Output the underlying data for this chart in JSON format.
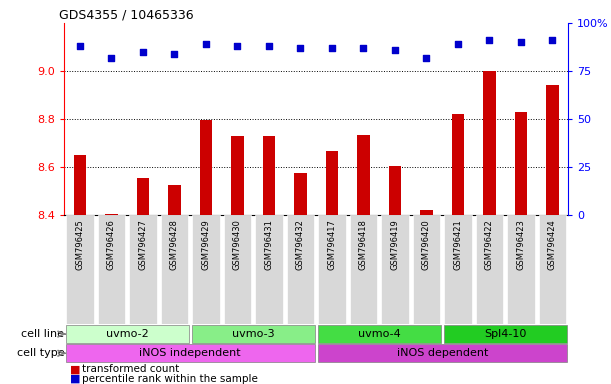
{
  "title": "GDS4355 / 10465336",
  "samples": [
    "GSM796425",
    "GSM796426",
    "GSM796427",
    "GSM796428",
    "GSM796429",
    "GSM796430",
    "GSM796431",
    "GSM796432",
    "GSM796417",
    "GSM796418",
    "GSM796419",
    "GSM796420",
    "GSM796421",
    "GSM796422",
    "GSM796423",
    "GSM796424"
  ],
  "bar_values": [
    8.65,
    8.405,
    8.555,
    8.525,
    8.795,
    8.73,
    8.73,
    8.575,
    8.665,
    8.735,
    8.605,
    8.42,
    8.82,
    9.0,
    8.83,
    8.94
  ],
  "percentile_values": [
    88,
    82,
    85,
    84,
    89,
    88,
    88,
    87,
    87,
    87,
    86,
    82,
    89,
    91,
    90,
    91
  ],
  "ylim_left": [
    8.4,
    9.2
  ],
  "ylim_right": [
    0,
    100
  ],
  "yticks_left": [
    8.4,
    8.6,
    8.8,
    9.0
  ],
  "yticks_right": [
    0,
    25,
    50,
    75,
    100
  ],
  "cell_line_groups": [
    {
      "label": "uvmo-2",
      "start": 0,
      "end": 3,
      "color": "#ccffcc"
    },
    {
      "label": "uvmo-3",
      "start": 4,
      "end": 7,
      "color": "#88ee88"
    },
    {
      "label": "uvmo-4",
      "start": 8,
      "end": 11,
      "color": "#44dd44"
    },
    {
      "label": "Spl4-10",
      "start": 12,
      "end": 15,
      "color": "#22cc22"
    }
  ],
  "cell_type_groups": [
    {
      "label": "iNOS independent",
      "start": 0,
      "end": 7,
      "color": "#ee66ee"
    },
    {
      "label": "iNOS dependent",
      "start": 8,
      "end": 15,
      "color": "#cc44cc"
    }
  ],
  "bar_color": "#cc0000",
  "dot_color": "#0000cc",
  "background_color": "#ffffff",
  "legend_items": [
    {
      "label": "transformed count",
      "color": "#cc0000"
    },
    {
      "label": "percentile rank within the sample",
      "color": "#0000cc"
    }
  ]
}
